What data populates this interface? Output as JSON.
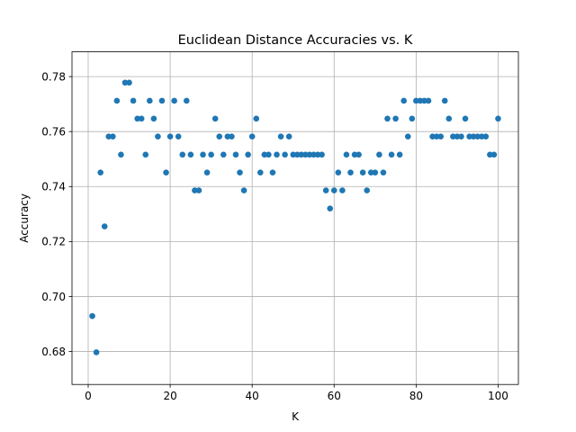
{
  "chart_data": {
    "type": "scatter",
    "title": "Euclidean Distance Accuracies vs. K",
    "xlabel": "K",
    "ylabel": "Accuracy",
    "xlim": [
      -3.95,
      104.95
    ],
    "ylim": [
      0.668,
      0.789
    ],
    "xticks": [
      0,
      20,
      40,
      60,
      80,
      100
    ],
    "xtick_labels": [
      "0",
      "20",
      "40",
      "60",
      "80",
      "100"
    ],
    "yticks": [
      0.68,
      0.7,
      0.72,
      0.74,
      0.76,
      0.78
    ],
    "ytick_labels": [
      "0.68",
      "0.70",
      "0.72",
      "0.74",
      "0.76",
      "0.78"
    ],
    "grid": true,
    "marker_color": "#1f77b4",
    "series": [
      {
        "x": [
          1,
          2,
          3,
          4,
          5,
          6,
          7,
          8,
          9,
          10,
          11,
          12,
          13,
          14,
          15,
          16,
          17,
          18,
          19,
          20,
          21,
          22,
          23,
          24,
          25,
          26,
          27,
          28,
          29,
          30,
          31,
          32,
          33,
          34,
          35,
          36,
          37,
          38,
          39,
          40,
          41,
          42,
          43,
          44,
          45,
          46,
          47,
          48,
          49,
          50,
          51,
          52,
          53,
          54,
          55,
          56,
          57,
          58,
          59,
          60,
          61,
          62,
          63,
          64,
          65,
          66,
          67,
          68,
          69,
          70,
          71,
          72,
          73,
          74,
          75,
          76,
          77,
          78,
          79,
          80,
          81,
          82,
          83,
          84,
          85,
          86,
          87,
          88,
          89,
          90,
          91,
          92,
          93,
          94,
          95,
          96,
          97,
          98,
          99,
          100
        ],
        "y": [
          0.6929,
          0.6797,
          0.7451,
          0.7255,
          0.7582,
          0.7582,
          0.7712,
          0.7516,
          0.7778,
          0.7778,
          0.7712,
          0.7647,
          0.7647,
          0.7516,
          0.7712,
          0.7647,
          0.7582,
          0.7712,
          0.7451,
          0.7582,
          0.7712,
          0.7582,
          0.7516,
          0.7712,
          0.7516,
          0.7386,
          0.7386,
          0.7516,
          0.7451,
          0.7516,
          0.7647,
          0.7582,
          0.7516,
          0.7582,
          0.7582,
          0.7516,
          0.7451,
          0.7386,
          0.7516,
          0.7582,
          0.7647,
          0.7451,
          0.7516,
          0.7516,
          0.7451,
          0.7516,
          0.7582,
          0.7516,
          0.7582,
          0.7516,
          0.7516,
          0.7516,
          0.7516,
          0.7516,
          0.7516,
          0.7516,
          0.7516,
          0.7386,
          0.732,
          0.7386,
          0.7451,
          0.7386,
          0.7516,
          0.7451,
          0.7516,
          0.7516,
          0.7451,
          0.7386,
          0.7451,
          0.7451,
          0.7516,
          0.7451,
          0.7647,
          0.7516,
          0.7647,
          0.7516,
          0.7712,
          0.7582,
          0.7647,
          0.7712,
          0.7712,
          0.7712,
          0.7712,
          0.7582,
          0.7582,
          0.7582,
          0.7712,
          0.7647,
          0.7582,
          0.7582,
          0.7582,
          0.7647,
          0.7582,
          0.7582,
          0.7582,
          0.7582,
          0.7582,
          0.7516,
          0.7516,
          0.7647
        ]
      }
    ]
  }
}
